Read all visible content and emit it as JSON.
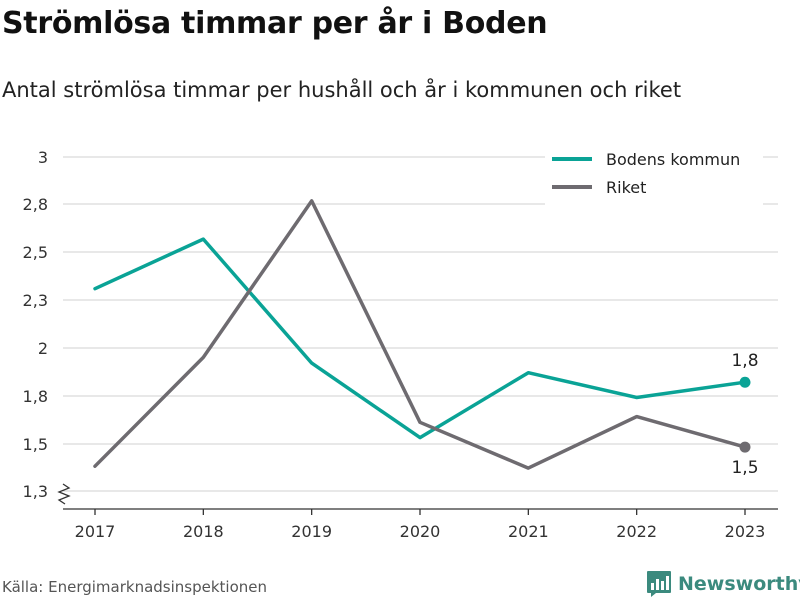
{
  "title": "Strömlösa timmar per år i Boden",
  "subtitle": "Antal strömlösa timmar per hushåll och år i kommunen och riket",
  "source": "Källa: Energimarknadsinspektionen",
  "brand": "Newsworthy",
  "colors": {
    "bodens": "#0aa396",
    "riket": "#6e6b70",
    "grid": "#d9d9d9",
    "axis": "#333333"
  },
  "chart_data": {
    "type": "line",
    "title": "",
    "xlabel": "",
    "ylabel": "",
    "categories": [
      "2017",
      "2018",
      "2019",
      "2020",
      "2021",
      "2022",
      "2023"
    ],
    "yticks": [
      "3",
      "2,8",
      "2,5",
      "2,3",
      "2",
      "1,8",
      "1,5",
      "1,3"
    ],
    "ylim": [
      1.25,
      3.0
    ],
    "grid": true,
    "legend_position": "top-right",
    "series": [
      {
        "name": "Bodens kommun",
        "color": "#0aa396",
        "values": [
          2.31,
          2.57,
          1.92,
          1.53,
          1.87,
          1.74,
          1.82
        ],
        "end_label": "1,8"
      },
      {
        "name": "Riket",
        "color": "#6e6b70",
        "values": [
          1.38,
          1.95,
          2.77,
          1.61,
          1.37,
          1.64,
          1.48
        ],
        "end_label": "1,5"
      }
    ]
  }
}
